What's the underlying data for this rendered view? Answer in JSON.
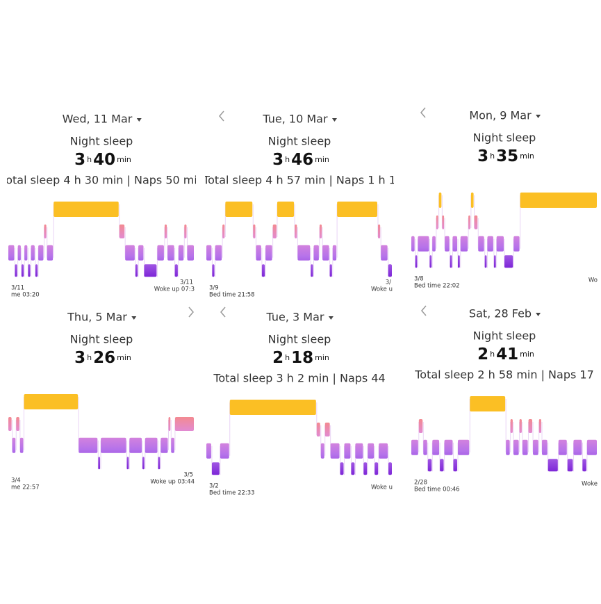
{
  "panels": [
    {
      "date": "Wed, 11 Mar",
      "title": "Night sleep",
      "hours": 3,
      "h": "h",
      "minutes": 40,
      "min": "min",
      "total": "otal sleep 4 h 30 min | Naps 50 mi",
      "start_date": "3/11",
      "bed_time": "me 03:20",
      "end_date": "3/11",
      "woke_up": "Woke up 07:3"
    },
    {
      "date": "Tue, 10 Mar",
      "title": "Night sleep",
      "hours": 3,
      "h": "h",
      "minutes": 46,
      "min": "min",
      "total": "Total sleep 4 h 57 min | Naps 1 h 1",
      "start_date": "3/9",
      "bed_time": "Bed time 21:58",
      "end_date": "3/",
      "woke_up": "Woke u"
    },
    {
      "date": "Mon, 9 Mar",
      "title": "Night sleep",
      "hours": 3,
      "h": "h",
      "minutes": 35,
      "min": "min",
      "start_date": "3/8",
      "bed_time": "Bed time 22:02",
      "woke_up": "Wo"
    },
    {
      "date": "Thu, 5 Mar",
      "title": "Night sleep",
      "hours": 3,
      "h": "h",
      "minutes": 26,
      "min": "min",
      "start_date": "3/4",
      "bed_time": "me 22:57",
      "end_date": "3/5",
      "woke_up": "Woke up 03:44"
    },
    {
      "date": "Tue, 3 Mar",
      "title": "Night sleep",
      "hours": 2,
      "h": "h",
      "minutes": 18,
      "min": "min",
      "total": "Total sleep 3 h 2 min | Naps 44",
      "start_date": "3/2",
      "bed_time": "Bed time 22:33",
      "woke_up": "Woke u"
    },
    {
      "date": "Sat, 28 Feb",
      "title": "Night sleep",
      "hours": 2,
      "h": "h",
      "minutes": 41,
      "min": "min",
      "total": "Total sleep 2 h 58 min | Naps 17",
      "start_date": "2/28",
      "bed_time": "Bed time 00:46",
      "woke_up": "Woke"
    }
  ]
}
